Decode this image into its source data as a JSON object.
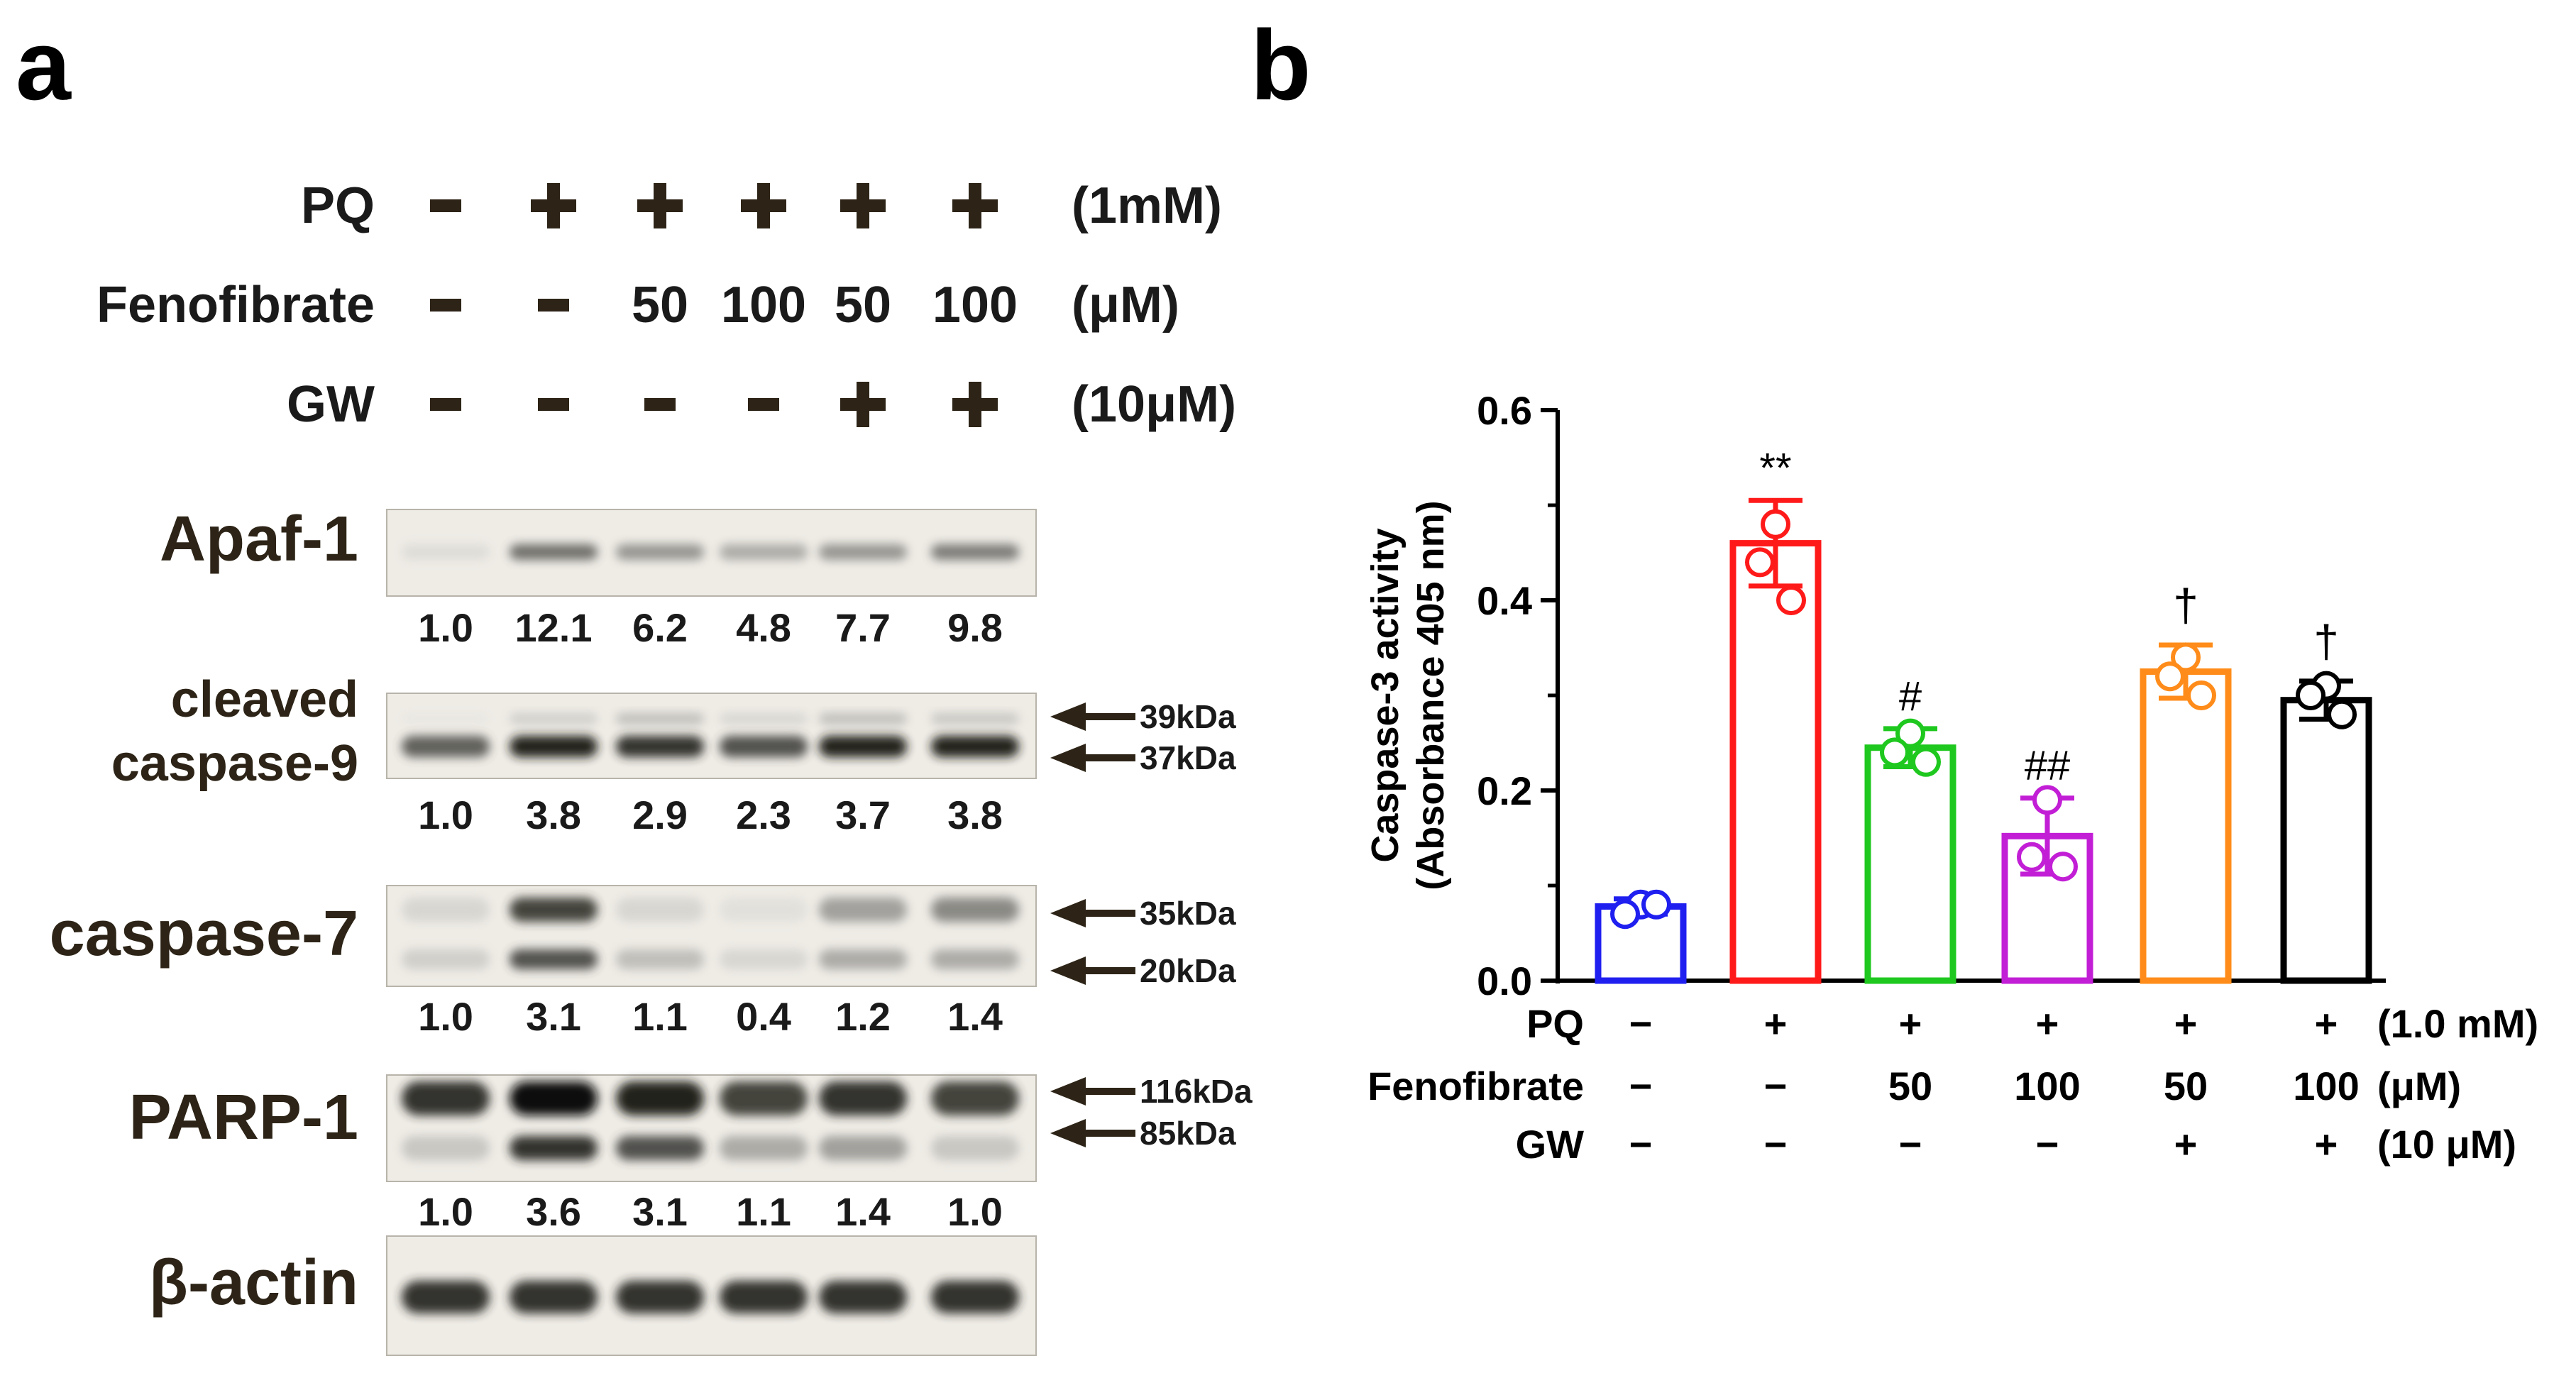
{
  "panel_a": {
    "letter": "a",
    "conditions": [
      {
        "label": "PQ",
        "values": [
          "-",
          "+",
          "+",
          "+",
          "+",
          "+"
        ],
        "unit": "(1mM)"
      },
      {
        "label": "Fenofibrate",
        "values": [
          "-",
          "-",
          "50",
          "100",
          "50",
          "100"
        ],
        "unit": "(μM)"
      },
      {
        "label": "GW",
        "values": [
          "-",
          "-",
          "-",
          "-",
          "+",
          "+"
        ],
        "unit": "(10μM)"
      }
    ],
    "blots": [
      {
        "label": "Apaf-1",
        "label_lines": [
          "Apaf-1"
        ],
        "quant": [
          "1.0",
          "12.1",
          "6.2",
          "4.8",
          "7.7",
          "9.8"
        ],
        "markers": []
      },
      {
        "label": "cleaved caspase-9",
        "label_lines": [
          "cleaved",
          "caspase-9"
        ],
        "quant": [
          "1.0",
          "3.8",
          "2.9",
          "2.3",
          "3.7",
          "3.8"
        ],
        "markers": [
          "39kDa",
          "37kDa"
        ]
      },
      {
        "label": "caspase-7",
        "label_lines": [
          "caspase-7"
        ],
        "quant": [
          "1.0",
          "3.1",
          "1.1",
          "0.4",
          "1.2",
          "1.4"
        ],
        "markers": [
          "35kDa",
          "20kDa"
        ]
      },
      {
        "label": "PARP-1",
        "label_lines": [
          "PARP-1"
        ],
        "quant": [
          "1.0",
          "3.6",
          "3.1",
          "1.1",
          "1.4",
          "1.0"
        ],
        "markers": [
          "116kDa",
          "85kDa"
        ]
      },
      {
        "label": "β-actin",
        "label_lines": [
          "β-actin"
        ],
        "quant": [],
        "markers": []
      }
    ],
    "intensities": {
      "Apaf-1": [
        [
          0.15,
          0.7,
          0.55,
          0.45,
          0.55,
          0.65
        ]
      ],
      "cleaved caspase-9": [
        [
          0.05,
          0.25,
          0.35,
          0.2,
          0.35,
          0.3
        ],
        [
          0.75,
          0.95,
          0.9,
          0.8,
          0.95,
          0.95
        ]
      ],
      "caspase-7": [
        [
          0.2,
          0.85,
          0.2,
          0.12,
          0.5,
          0.6
        ],
        [
          0.25,
          0.8,
          0.35,
          0.2,
          0.45,
          0.45
        ]
      ],
      "PARP-1": [
        [
          0.9,
          1.0,
          0.95,
          0.85,
          0.9,
          0.85
        ],
        [
          0.3,
          0.9,
          0.8,
          0.45,
          0.5,
          0.3
        ]
      ],
      "β-actin": [
        [
          0.9,
          0.9,
          0.9,
          0.9,
          0.9,
          0.9
        ]
      ]
    }
  },
  "panel_b": {
    "letter": "b",
    "xlabels": [
      {
        "label": "PQ",
        "values": [
          "−",
          "+",
          "+",
          "+",
          "+",
          "+"
        ],
        "unit": "(1.0 mM)"
      },
      {
        "label": "Fenofibrate",
        "values": [
          "−",
          "−",
          "50",
          "100",
          "50",
          "100"
        ],
        "unit": "(μM)"
      },
      {
        "label": "GW",
        "values": [
          "−",
          "−",
          "−",
          "−",
          "+",
          "+"
        ],
        "unit": "(10 μM)"
      }
    ]
  },
  "chart_data": {
    "type": "bar",
    "title": "",
    "ylabel_lines": [
      "Caspase-3 activity",
      "(Absorbance 405 nm)"
    ],
    "ylim": [
      0,
      0.6
    ],
    "yticks": [
      "0.0",
      "0.2",
      "0.4",
      "0.6"
    ],
    "groups": [
      {
        "mean": 0.078,
        "err": 0.008,
        "points": [
          0.08,
          0.07,
          0.08
        ],
        "color": "#1f1ff0",
        "annotation": ""
      },
      {
        "mean": 0.46,
        "err": 0.045,
        "points": [
          0.48,
          0.44,
          0.4
        ],
        "color": "#ff1a1a",
        "annotation": "**"
      },
      {
        "mean": 0.245,
        "err": 0.02,
        "points": [
          0.26,
          0.24,
          0.23
        ],
        "color": "#1ec81e",
        "annotation": "#"
      },
      {
        "mean": 0.152,
        "err": 0.04,
        "points": [
          0.19,
          0.13,
          0.12
        ],
        "color": "#c21ed6",
        "annotation": "##"
      },
      {
        "mean": 0.325,
        "err": 0.028,
        "points": [
          0.34,
          0.32,
          0.3
        ],
        "color": "#ff8c1a",
        "annotation": "†"
      },
      {
        "mean": 0.295,
        "err": 0.02,
        "points": [
          0.31,
          0.3,
          0.28
        ],
        "color": "#000000",
        "annotation": "†"
      }
    ]
  }
}
